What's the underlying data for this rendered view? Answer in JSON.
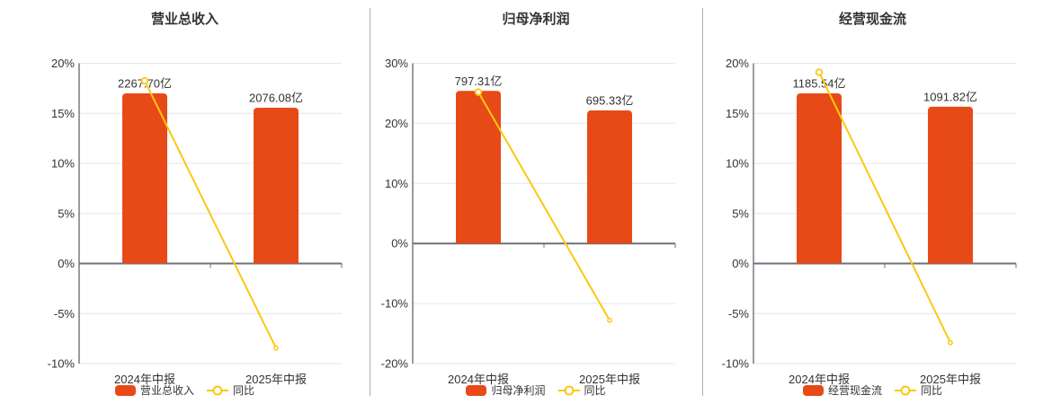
{
  "colors": {
    "bar": "#E84A17",
    "line": "#FBC810",
    "grid_line": "#E2E7F1",
    "axis_line": "#6E7079",
    "text": "#333333",
    "divider": "#ABAEB5",
    "marker_fill": "#FFFFFF",
    "background": "#FFFFFF"
  },
  "chart_data": [
    {
      "type": "bar+line",
      "title": "营业总收入",
      "categories": [
        "2024年中报",
        "2025年中报"
      ],
      "legend": [
        "营业总收入",
        "同比"
      ],
      "series": [
        {
          "name": "营业总收入",
          "type": "bar",
          "unit": "亿",
          "values": [
            2267.7,
            2076.08
          ],
          "labels": [
            "2267.70亿",
            "2076.08亿"
          ]
        },
        {
          "name": "同比",
          "type": "line",
          "values_pct": [
            18.25,
            -8.45
          ]
        }
      ],
      "y_axis": {
        "min": -10,
        "max": 20,
        "ticks": [
          20,
          15,
          10,
          5,
          0,
          -5,
          -10
        ],
        "labels": [
          "20%",
          "15%",
          "10%",
          "5%",
          "0%",
          "-5%",
          "-10%"
        ]
      },
      "bar_display_pct": [
        17.0,
        15.56
      ],
      "grid": true,
      "legend_position": "bottom"
    },
    {
      "type": "bar+line",
      "title": "归母净利润",
      "categories": [
        "2024年中报",
        "2025年中报"
      ],
      "legend": [
        "归母净利润",
        "同比"
      ],
      "series": [
        {
          "name": "归母净利润",
          "type": "bar",
          "unit": "亿",
          "values": [
            797.31,
            695.33
          ],
          "labels": [
            "797.31亿",
            "695.33亿"
          ]
        },
        {
          "name": "同比",
          "type": "line",
          "values_pct": [
            25.2,
            -12.79
          ]
        }
      ],
      "y_axis": {
        "min": -20,
        "max": 30,
        "ticks": [
          30,
          20,
          10,
          0,
          -10,
          -20
        ],
        "labels": [
          "30%",
          "20%",
          "10%",
          "0%",
          "-10%",
          "-20%"
        ]
      },
      "bar_display_pct": [
        25.4,
        22.15
      ],
      "grid": true,
      "legend_position": "bottom"
    },
    {
      "type": "bar+line",
      "title": "经营现金流",
      "categories": [
        "2024年中报",
        "2025年中报"
      ],
      "legend": [
        "经营现金流",
        "同比"
      ],
      "series": [
        {
          "name": "经营现金流",
          "type": "bar",
          "unit": "亿",
          "values": [
            1185.54,
            1091.82
          ],
          "labels": [
            "1185.54亿",
            "1091.82亿"
          ]
        },
        {
          "name": "同比",
          "type": "line",
          "values_pct": [
            19.1,
            -7.91
          ]
        }
      ],
      "y_axis": {
        "min": -10,
        "max": 20,
        "ticks": [
          20,
          15,
          10,
          5,
          0,
          -5,
          -10
        ],
        "labels": [
          "20%",
          "15%",
          "10%",
          "5%",
          "0%",
          "-5%",
          "-10%"
        ]
      },
      "bar_display_pct": [
        17.0,
        15.66
      ],
      "grid": true,
      "legend_position": "bottom"
    }
  ]
}
